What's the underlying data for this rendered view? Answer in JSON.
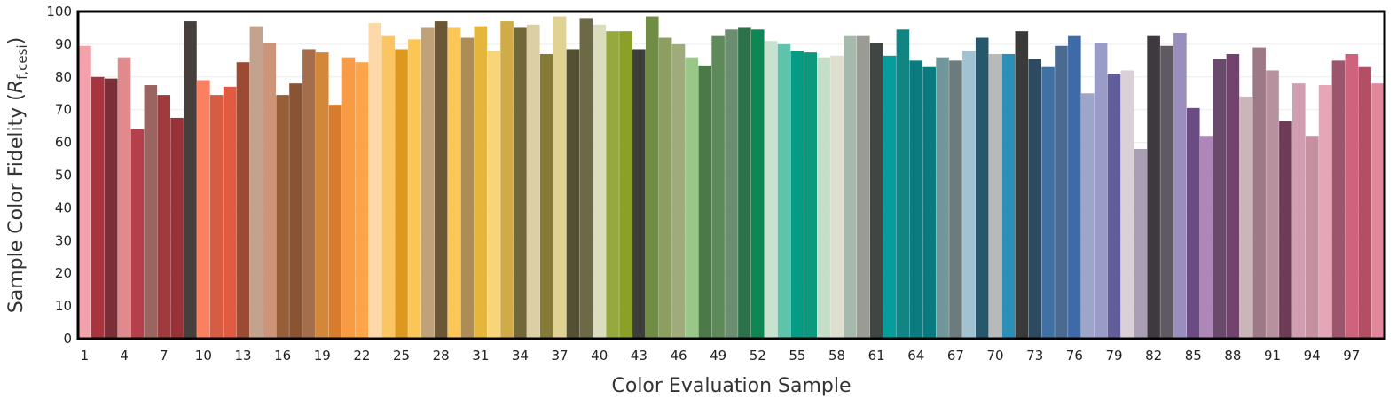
{
  "chart_data": {
    "type": "bar",
    "xlabel": "Color Evaluation Sample",
    "ylabel_main": "Sample Color Fidelity (",
    "ylabel_symbol": "R",
    "ylabel_subscript": "f,cesi",
    "ylabel_close": ")",
    "ylim": [
      0,
      100
    ],
    "yticks": [
      0,
      10,
      20,
      30,
      40,
      50,
      60,
      70,
      80,
      90,
      100
    ],
    "xtick_labels": [
      "1",
      "4",
      "7",
      "10",
      "13",
      "16",
      "19",
      "22",
      "25",
      "28",
      "31",
      "34",
      "37",
      "40",
      "43",
      "46",
      "49",
      "52",
      "55",
      "58",
      "61",
      "64",
      "67",
      "70",
      "73",
      "76",
      "79",
      "82",
      "85",
      "88",
      "91",
      "94",
      "97"
    ],
    "grid": "horizontal",
    "x": [
      1,
      2,
      3,
      4,
      5,
      6,
      7,
      8,
      9,
      10,
      11,
      12,
      13,
      14,
      15,
      16,
      17,
      18,
      19,
      20,
      21,
      22,
      23,
      24,
      25,
      26,
      27,
      28,
      29,
      30,
      31,
      32,
      33,
      34,
      35,
      36,
      37,
      38,
      39,
      40,
      41,
      42,
      43,
      44,
      45,
      46,
      47,
      48,
      49,
      50,
      51,
      52,
      53,
      54,
      55,
      56,
      57,
      58,
      59,
      60,
      61,
      62,
      63,
      64,
      65,
      66,
      67,
      68,
      69,
      70,
      71,
      72,
      73,
      74,
      75,
      76,
      77,
      78,
      79,
      80,
      81,
      82,
      83,
      84,
      85,
      86,
      87,
      88,
      89,
      90,
      91,
      92,
      93,
      94,
      95,
      96,
      97,
      98,
      99
    ],
    "values": [
      89.5,
      80,
      79.5,
      86,
      64,
      77.5,
      74.5,
      67.5,
      97,
      79,
      74.5,
      77,
      84.5,
      95.5,
      90.5,
      74.5,
      78,
      88.5,
      87.5,
      71.5,
      86,
      84.5,
      96.5,
      92.5,
      88.5,
      91.5,
      95,
      97,
      95,
      92,
      95.5,
      88,
      97,
      95,
      96,
      87,
      98.5,
      88.5,
      98,
      96,
      94,
      94,
      88.5,
      98.5,
      92,
      90,
      86,
      83.5,
      92.5,
      94.5,
      95,
      94.5,
      91,
      90,
      88,
      87.5,
      86,
      86.5,
      92.5,
      92.5,
      90.5,
      86.5,
      94.5,
      85,
      83,
      86,
      85,
      88,
      92,
      87,
      87,
      94,
      85.5,
      83,
      89.5,
      92.5,
      75,
      90.5,
      81,
      82,
      58,
      92.5,
      89.5,
      93.5,
      70.5,
      62,
      85.5,
      87,
      74,
      89,
      82,
      66.5,
      78,
      62,
      77.5,
      85,
      87,
      83,
      78
    ],
    "colors": [
      "#f3a1ab",
      "#a8353e",
      "#7a2e35",
      "#e08a8e",
      "#b3404a",
      "#9a6461",
      "#9f3a3e",
      "#983138",
      "#463f3c",
      "#fb8062",
      "#d65c44",
      "#e05b41",
      "#9b4b34",
      "#c3a38e",
      "#cc9478",
      "#965f3a",
      "#8a5331",
      "#a46d4b",
      "#d48739",
      "#d77b2c",
      "#f99b45",
      "#fba44a",
      "#fdd8a8",
      "#fbc563",
      "#dd981f",
      "#fbc558",
      "#c0a27a",
      "#6b5735",
      "#fdc757",
      "#ac8d58",
      "#e4b63b",
      "#f8d579",
      "#cfac48",
      "#706839",
      "#dccfa6",
      "#857a36",
      "#e0d290",
      "#535033",
      "#6d6947",
      "#dcdcbf",
      "#96a93e",
      "#8aa027",
      "#3e3f3a",
      "#718c45",
      "#8c9e60",
      "#9fab7a",
      "#99c787",
      "#4b7a48",
      "#5d8a58",
      "#6a8e6f",
      "#2d714a",
      "#0f8755",
      "#c6e3d0",
      "#5dc4ab",
      "#059b85",
      "#0d997e",
      "#c3dfc7",
      "#dedfce",
      "#a5b9ac",
      "#9a9b92",
      "#3f4643",
      "#089d9d",
      "#118483",
      "#0b7b80",
      "#087b80",
      "#6f979a",
      "#6c7c7e",
      "#a0c2d3",
      "#27576a",
      "#b9b9b7",
      "#2d8fb6",
      "#3a3a3a",
      "#2e4a61",
      "#3f71a4",
      "#4a6a90",
      "#3f6aa8",
      "#9da6c9",
      "#9a9bc7",
      "#625d9b",
      "#dad0d8",
      "#a99eb4",
      "#3d393e",
      "#5f5a62",
      "#9a8ebf",
      "#6a4b83",
      "#ae86b8",
      "#6a4a6b",
      "#72436f",
      "#cab6b8",
      "#9d7887",
      "#b7919e",
      "#6e3b56",
      "#d19eb1",
      "#c5909f",
      "#e6a6b8",
      "#9b566d",
      "#cf627c",
      "#b24f64",
      "#e28699"
    ],
    "colors_note": "bar fill colors"
  }
}
